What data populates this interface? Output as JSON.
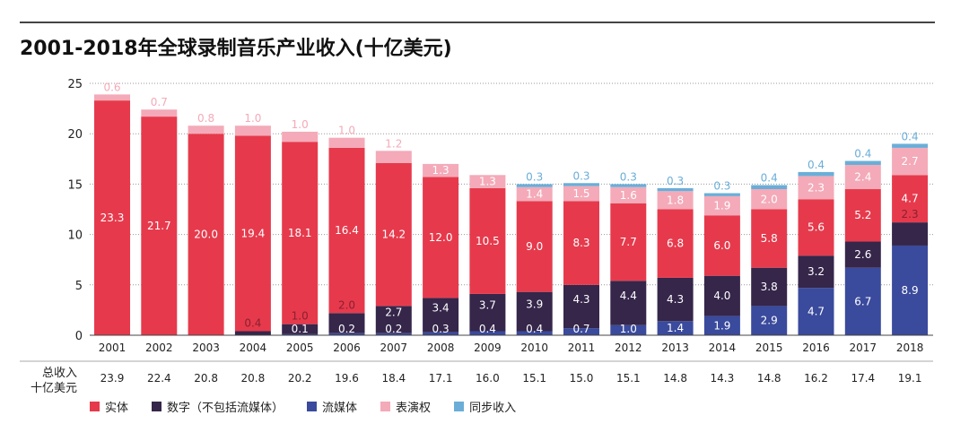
{
  "chart_data": {
    "type": "bar",
    "stacked": true,
    "title": "2001-2018年全球录制音乐产业收入(十亿美元)",
    "ylim": [
      0,
      25
    ],
    "yticks": [
      0,
      5,
      10,
      15,
      20,
      25
    ],
    "categories": [
      "2001",
      "2002",
      "2003",
      "2004",
      "2005",
      "2006",
      "2007",
      "2008",
      "2009",
      "2010",
      "2011",
      "2012",
      "2013",
      "2014",
      "2015",
      "2016",
      "2017",
      "2018"
    ],
    "series": [
      {
        "name": "流媒体",
        "color": "#3a4a9c",
        "values": [
          0,
          0,
          0,
          0,
          0.1,
          0.2,
          0.2,
          0.3,
          0.4,
          0.4,
          0.7,
          1.0,
          1.4,
          1.9,
          2.9,
          4.7,
          6.7,
          8.9
        ]
      },
      {
        "name": "数字（不包括流媒体）",
        "color": "#35264a",
        "values": [
          0,
          0,
          0,
          0.4,
          1.0,
          2.0,
          2.7,
          3.4,
          3.7,
          3.9,
          4.3,
          4.4,
          4.3,
          4.0,
          3.8,
          3.2,
          2.6,
          2.3
        ]
      },
      {
        "name": "实体",
        "color": "#e63a4c",
        "values": [
          23.3,
          21.7,
          20.0,
          19.4,
          18.1,
          16.4,
          14.2,
          12.0,
          10.5,
          9.0,
          8.3,
          7.7,
          6.8,
          6.0,
          5.8,
          5.6,
          5.2,
          4.7
        ]
      },
      {
        "name": "表演权",
        "color": "#f4aab8",
        "values": [
          0.6,
          0.7,
          0.8,
          1.0,
          1.0,
          1.0,
          1.2,
          1.3,
          1.3,
          1.4,
          1.5,
          1.6,
          1.8,
          1.9,
          2.0,
          2.3,
          2.4,
          2.7
        ]
      },
      {
        "name": "同步收入",
        "color": "#6aaed8",
        "values": [
          0,
          0,
          0,
          0,
          0,
          0,
          0,
          0,
          0,
          0.3,
          0.3,
          0.3,
          0.3,
          0.3,
          0.4,
          0.4,
          0.4,
          0.4
        ]
      }
    ],
    "totals_label": [
      "总收入",
      "十亿美元"
    ],
    "totals": [
      "23.9",
      "22.4",
      "20.8",
      "20.8",
      "20.2",
      "19.6",
      "18.4",
      "17.1",
      "16.0",
      "15.1",
      "15.0",
      "15.1",
      "14.8",
      "14.3",
      "14.8",
      "16.2",
      "17.4",
      "19.1"
    ],
    "legend_order": [
      "实体",
      "数字（不包括流媒体）",
      "流媒体",
      "表演权",
      "同步收入"
    ],
    "legend_colors": [
      "#e63a4c",
      "#35264a",
      "#3a4a9c",
      "#f4aab8",
      "#6aaed8"
    ]
  }
}
